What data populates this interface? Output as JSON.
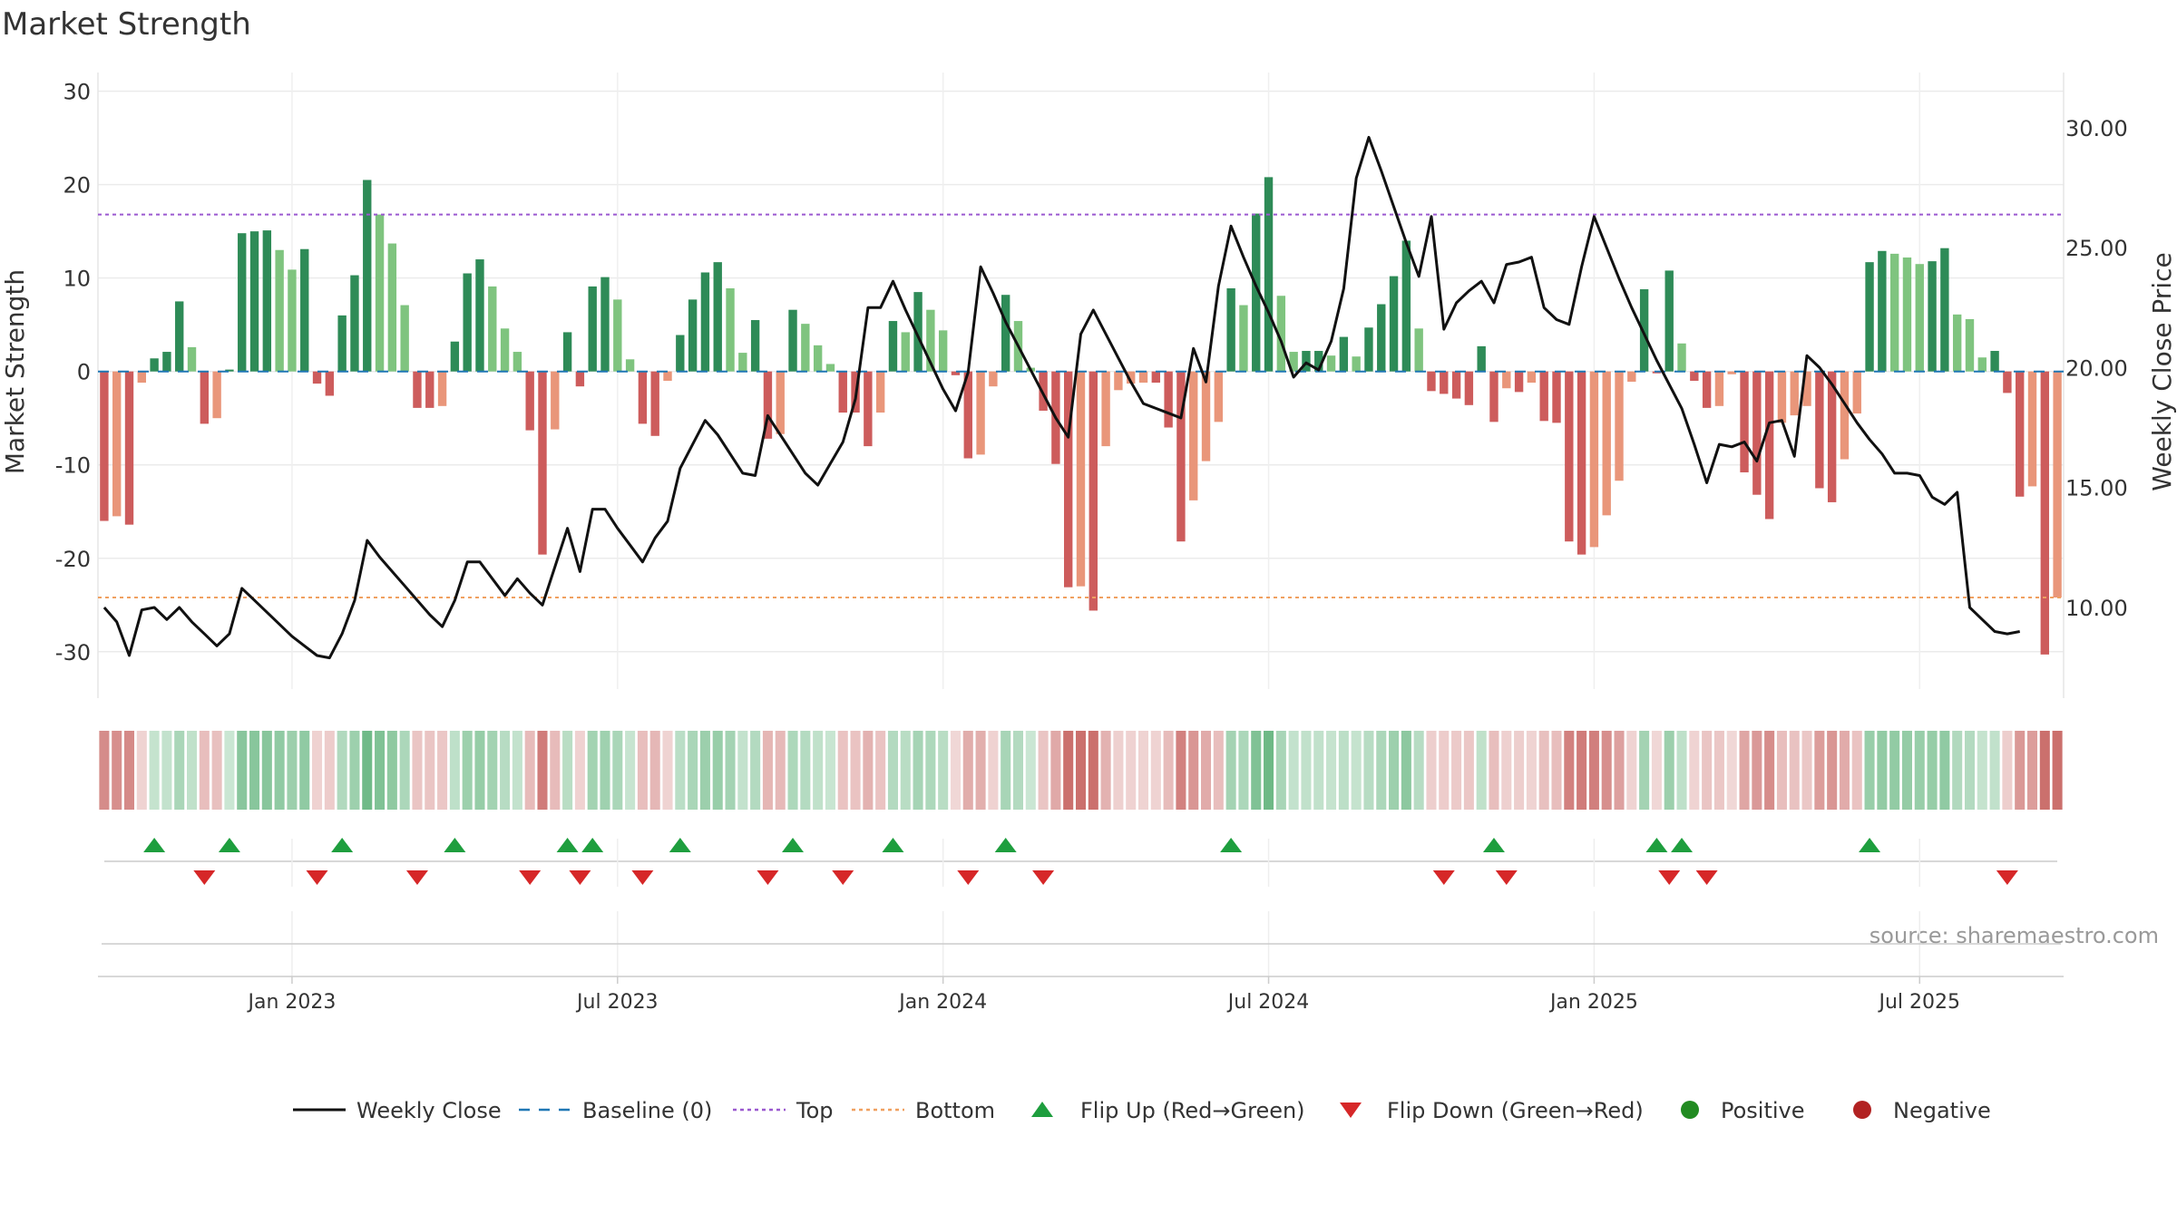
{
  "chart_data": {
    "type": "bar",
    "title": "Market Strength",
    "source": "source: sharemaestro.com",
    "y_left": {
      "label": "Market Strength",
      "ylim": [
        -34,
        32
      ],
      "ticks": [
        30,
        20,
        10,
        0,
        -10,
        -20,
        -30
      ]
    },
    "y_right": {
      "label": "Weekly Close Price",
      "ylim": [
        6.6,
        32.3
      ],
      "ticks": [
        "30.00",
        "25.00",
        "20.00",
        "15.00",
        "10.00"
      ]
    },
    "x_axis": {
      "tick_labels": [
        "Jan 2023",
        "Jul 2023",
        "Jan 2024",
        "Jul 2024",
        "Jan 2025",
        "Jul 2025"
      ],
      "tick_weeks": [
        15,
        41,
        67,
        93,
        119,
        145
      ],
      "total_weeks": 157
    },
    "grid": true,
    "legend_position": "bottom",
    "reference_lines": {
      "top": 16.8,
      "bottom": -24.2,
      "baseline": 0
    },
    "colors": {
      "pos_strong": "#2e8b57",
      "pos_mid": "#4aa868",
      "pos_weak": "#7fc47f",
      "neg_strong": "#cd5c5c",
      "neg_weak": "#e9967a",
      "price_line": "#111111",
      "baseline": "#1f77b4",
      "top": "#9b59d0",
      "bottom": "#f0a060",
      "flip_up": "#1e9e3e",
      "flip_down": "#d62728",
      "positive": "#228b22",
      "negative": "#b22222"
    },
    "strength": [
      -16,
      -15.5,
      -16.4,
      -1.2,
      1.4,
      2.1,
      7.5,
      2.6,
      -5.6,
      -5,
      0.2,
      14.8,
      15,
      15.1,
      13,
      10.9,
      13.1,
      -1.3,
      -2.6,
      6,
      10.3,
      20.5,
      16.8,
      13.7,
      7.1,
      -3.9,
      -3.9,
      -3.7,
      3.2,
      10.5,
      12,
      9.1,
      4.6,
      2.1,
      -6.3,
      -19.6,
      -6.2,
      4.2,
      -1.6,
      9.1,
      10.1,
      7.7,
      1.3,
      -5.6,
      -6.9,
      -1,
      3.9,
      7.7,
      10.6,
      11.7,
      8.9,
      2,
      5.5,
      -7.2,
      -6.7,
      6.6,
      5.1,
      2.8,
      0.8,
      -4.4,
      -4.4,
      -8,
      -4.4,
      5.4,
      4.2,
      8.5,
      6.6,
      4.4,
      -0.4,
      -9.3,
      -8.9,
      -1.6,
      8.2,
      5.4,
      0.4,
      -4.2,
      -9.9,
      -23.1,
      -23,
      -25.6,
      -8,
      -2,
      -1.3,
      -1.2,
      -1.2,
      -6,
      -18.2,
      -13.8,
      -9.6,
      -5.4,
      8.9,
      7.1,
      16.9,
      20.8,
      8.1,
      2.1,
      2.2,
      2.2,
      1.7,
      3.7,
      1.6,
      4.7,
      7.2,
      10.2,
      14,
      4.6,
      -2.1,
      -2.4,
      -2.9,
      -3.6,
      2.7,
      -5.4,
      -1.8,
      -2.2,
      -1.2,
      -5.3,
      -5.5,
      -18.2,
      -19.6,
      -18.8,
      -15.4,
      -11.7,
      -1.1,
      8.8,
      -0.2,
      10.8,
      3,
      -1,
      -3.9,
      -3.7,
      -0.3,
      -10.8,
      -13.2,
      -15.8,
      -5.5,
      -4.7,
      -3.7,
      -12.5,
      -14,
      -9.4,
      -4.5,
      11.7,
      12.9,
      12.6,
      12.2,
      11.5,
      11.8,
      13.2,
      6.1,
      5.6,
      1.5,
      2.2,
      -2.3,
      -13.4,
      -12.3,
      -30.3,
      -24.2
    ],
    "price": [
      10.0,
      9.4,
      8.0,
      9.9,
      10.0,
      9.5,
      10.0,
      9.4,
      8.9,
      8.4,
      8.9,
      10.8,
      10.3,
      9.8,
      9.3,
      8.8,
      8.4,
      8.0,
      7.9,
      8.9,
      10.3,
      12.8,
      12.1,
      11.5,
      10.9,
      10.3,
      9.7,
      9.2,
      10.3,
      11.9,
      11.9,
      11.2,
      10.5,
      11.2,
      10.6,
      10.1,
      11.7,
      13.3,
      11.5,
      14.1,
      14.1,
      13.3,
      12.6,
      11.9,
      12.9,
      13.6,
      15.8,
      16.8,
      17.8,
      17.2,
      16.4,
      15.6,
      15.5,
      18.0,
      17.2,
      16.4,
      15.6,
      15.1,
      16.0,
      16.9,
      18.7,
      22.5,
      22.5,
      23.6,
      22.4,
      21.3,
      20.2,
      19.1,
      18.2,
      19.8,
      24.2,
      23.1,
      21.9,
      20.9,
      19.9,
      18.9,
      17.9,
      17.1,
      21.4,
      22.4,
      21.4,
      20.4,
      19.4,
      18.5,
      18.3,
      18.1,
      17.9,
      20.8,
      19.4,
      23.4,
      25.9,
      24.6,
      23.4,
      22.3,
      21.1,
      19.6,
      20.2,
      19.9,
      21.1,
      23.3,
      27.9,
      29.6,
      28.2,
      26.7,
      25.2,
      23.8,
      26.3,
      21.6,
      22.7,
      23.2,
      23.6,
      22.7,
      24.3,
      24.4,
      24.6,
      22.5,
      22.0,
      21.8,
      24.2,
      26.3,
      25.0,
      23.7,
      22.5,
      21.4,
      20.3,
      19.3,
      18.3,
      16.8,
      15.2,
      16.8,
      16.7,
      16.9,
      16.1,
      17.7,
      17.8,
      16.3,
      20.5,
      20.0,
      19.3,
      18.5,
      17.7,
      17.0,
      16.4,
      15.6,
      15.6,
      15.5,
      14.6,
      14.3,
      14.8,
      10.0,
      9.5,
      9.0,
      8.9,
      9.0
    ],
    "flip_up_weeks": [
      4,
      10,
      19,
      28,
      37,
      39,
      46,
      55,
      63,
      72,
      90,
      111,
      124,
      126,
      141
    ],
    "flip_down_weeks": [
      8,
      17,
      25,
      34,
      38,
      43,
      53,
      59,
      69,
      75,
      107,
      112,
      125,
      128,
      152
    ]
  },
  "legend": [
    {
      "label": "Weekly Close",
      "icon": "solid-line"
    },
    {
      "label": "Baseline (0)",
      "icon": "dashed-line"
    },
    {
      "label": "Top",
      "icon": "dotted-line"
    },
    {
      "label": "Bottom",
      "icon": "dotted-line"
    },
    {
      "label": "Flip Up (Red→Green)",
      "icon": "triangle-up"
    },
    {
      "label": "Flip Down (Green→Red)",
      "icon": "triangle-down"
    },
    {
      "label": "Positive",
      "icon": "circle"
    },
    {
      "label": "Negative",
      "icon": "circle"
    }
  ]
}
